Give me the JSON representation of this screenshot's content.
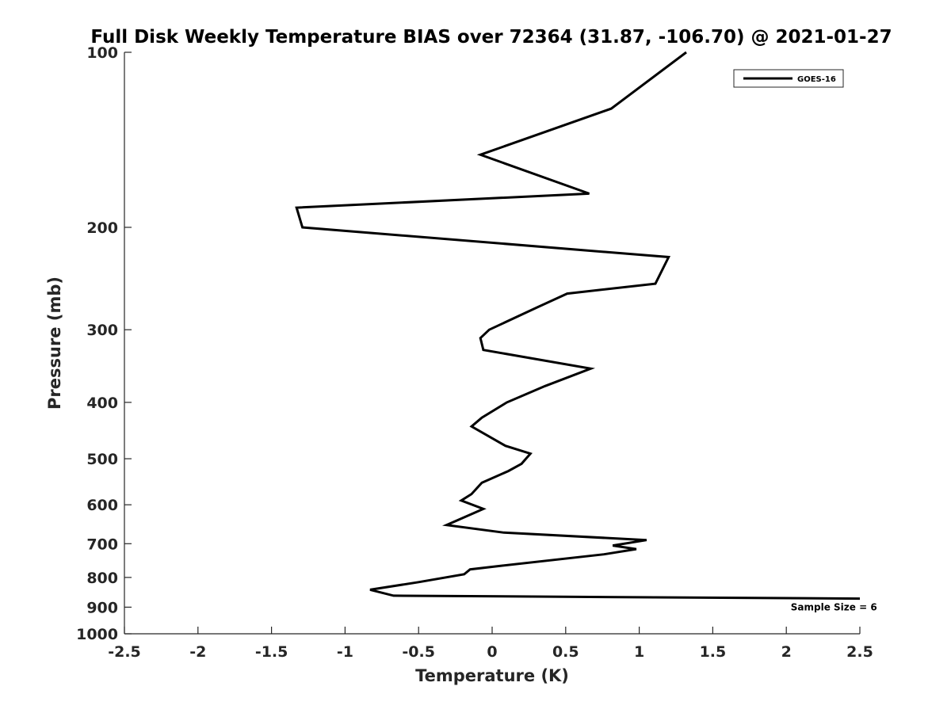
{
  "chart_data": {
    "type": "line",
    "title": "Full Disk Weekly Temperature BIAS over 72364 (31.87, -106.70) @ 2021-01-27",
    "xlabel": "Temperature (K)",
    "ylabel": "Pressure (mb)",
    "xlim": [
      -2.5,
      2.5
    ],
    "ylim": [
      100,
      1000
    ],
    "y_scale": "log",
    "y_reversed": true,
    "grid": false,
    "legend_position": "top-right",
    "x_ticks": [
      -2.5,
      -2,
      -1.5,
      -1,
      -0.5,
      0,
      0.5,
      1,
      1.5,
      2,
      2.5
    ],
    "x_tick_labels": [
      "-2.5",
      "-2",
      "-1.5",
      "-1",
      "-0.5",
      "0",
      "0.5",
      "1",
      "1.5",
      "2",
      "2.5"
    ],
    "y_ticks": [
      100,
      200,
      300,
      400,
      500,
      600,
      700,
      800,
      900,
      1000
    ],
    "y_tick_labels": [
      "100",
      "200",
      "300",
      "400",
      "500",
      "600",
      "700",
      "800",
      "900",
      "1000"
    ],
    "series": [
      {
        "name": "GOES-16",
        "color": "#000000",
        "points": [
          {
            "t": 1.32,
            "p": 100
          },
          {
            "t": 0.81,
            "p": 125
          },
          {
            "t": -0.08,
            "p": 150
          },
          {
            "t": 0.66,
            "p": 175
          },
          {
            "t": -1.33,
            "p": 185
          },
          {
            "t": -1.29,
            "p": 200
          },
          {
            "t": 1.2,
            "p": 225
          },
          {
            "t": 1.11,
            "p": 250
          },
          {
            "t": 0.51,
            "p": 260
          },
          {
            "t": 0.3,
            "p": 275
          },
          {
            "t": -0.02,
            "p": 300
          },
          {
            "t": -0.08,
            "p": 310
          },
          {
            "t": -0.06,
            "p": 325
          },
          {
            "t": 0.67,
            "p": 350
          },
          {
            "t": 0.36,
            "p": 375
          },
          {
            "t": 0.1,
            "p": 400
          },
          {
            "t": -0.07,
            "p": 425
          },
          {
            "t": -0.14,
            "p": 440
          },
          {
            "t": 0.09,
            "p": 475
          },
          {
            "t": 0.26,
            "p": 490
          },
          {
            "t": 0.2,
            "p": 510
          },
          {
            "t": 0.11,
            "p": 525
          },
          {
            "t": -0.07,
            "p": 550
          },
          {
            "t": -0.14,
            "p": 575
          },
          {
            "t": -0.21,
            "p": 590
          },
          {
            "t": -0.06,
            "p": 610
          },
          {
            "t": -0.31,
            "p": 650
          },
          {
            "t": 0.08,
            "p": 670
          },
          {
            "t": 1.05,
            "p": 690
          },
          {
            "t": 0.82,
            "p": 705
          },
          {
            "t": 0.98,
            "p": 715
          },
          {
            "t": 0.76,
            "p": 730
          },
          {
            "t": 0.04,
            "p": 765
          },
          {
            "t": -0.15,
            "p": 775
          },
          {
            "t": -0.19,
            "p": 790
          },
          {
            "t": -0.5,
            "p": 815
          },
          {
            "t": -0.83,
            "p": 840
          },
          {
            "t": -0.67,
            "p": 860
          },
          {
            "t": 2.5,
            "p": 870
          }
        ]
      }
    ],
    "annotations": [
      {
        "text": "Sample Size = 6",
        "t": 2.03,
        "p": 900
      }
    ]
  }
}
